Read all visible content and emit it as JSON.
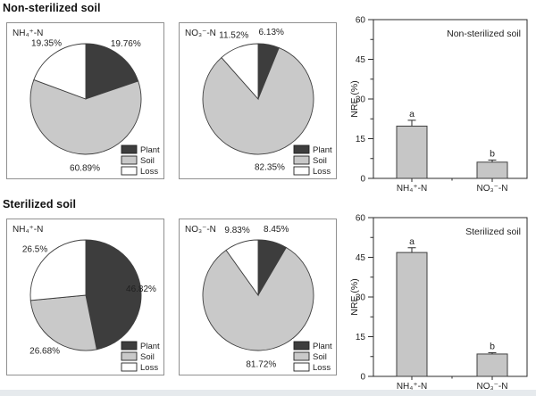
{
  "figure": {
    "section_headings": [
      "Non-sterilized soil",
      "Sterilized soil"
    ],
    "legend_labels": [
      "Plant",
      "Soil",
      "Loss"
    ],
    "colors": {
      "plant": "#3d3d3d",
      "soil": "#c9c9c9",
      "loss": "#ffffff",
      "outline": "#3f3f3f",
      "panel_border": "#909090",
      "axis": "#2b2b2b",
      "bar_fill": "#c6c6c6",
      "text": "#1f1f1f",
      "bottom_strip": "#e6eaed"
    }
  },
  "chart_data": [
    {
      "type": "pie",
      "section": "Non-sterilized soil",
      "panel_label": "NH₄⁺-N",
      "slices": [
        {
          "label": "Plant",
          "value": 19.76,
          "text": "19.76%"
        },
        {
          "label": "Soil",
          "value": 60.89,
          "text": "60.89%"
        },
        {
          "label": "Loss",
          "value": 19.35,
          "text": "19.35%"
        }
      ],
      "legend": [
        "Plant",
        "Soil",
        "Loss"
      ],
      "legend_position": "bottom-right",
      "start_angle_deg": 0,
      "direction": "clockwise"
    },
    {
      "type": "pie",
      "section": "Non-sterilized soil",
      "panel_label": "NO₃⁻-N",
      "slices": [
        {
          "label": "Plant",
          "value": 6.13,
          "text": "6.13%"
        },
        {
          "label": "Soil",
          "value": 82.35,
          "text": "82.35%"
        },
        {
          "label": "Loss",
          "value": 11.52,
          "text": "11.52%"
        }
      ],
      "legend": [
        "Plant",
        "Soil",
        "Loss"
      ],
      "legend_position": "bottom-right",
      "start_angle_deg": 0,
      "direction": "clockwise"
    },
    {
      "type": "bar",
      "title": "Non-sterilized soil",
      "ylabel": "NRE (%)",
      "ylim": [
        0,
        60
      ],
      "yticks": [
        0,
        15,
        30,
        45,
        60
      ],
      "minor_tick_step": 7.5,
      "categories": [
        "NH₄⁺-N",
        "NO₃⁻-N"
      ],
      "values": [
        19.76,
        6.13
      ],
      "errors": [
        2.2,
        0.8
      ],
      "sig_letters": [
        "a",
        "b"
      ],
      "grid": false
    },
    {
      "type": "pie",
      "section": "Sterilized soil",
      "panel_label": "NH₄⁺-N",
      "slices": [
        {
          "label": "Plant",
          "value": 46.82,
          "text": "46.82%"
        },
        {
          "label": "Soil",
          "value": 26.68,
          "text": "26.68%"
        },
        {
          "label": "Loss",
          "value": 26.5,
          "text": "26.5%"
        }
      ],
      "legend": [
        "Plant",
        "Soil",
        "Loss"
      ],
      "legend_position": "bottom-right",
      "start_angle_deg": 0,
      "direction": "clockwise"
    },
    {
      "type": "pie",
      "section": "Sterilized soil",
      "panel_label": "NO₃⁻-N",
      "slices": [
        {
          "label": "Plant",
          "value": 8.45,
          "text": "8.45%"
        },
        {
          "label": "Soil",
          "value": 81.72,
          "text": "81.72%"
        },
        {
          "label": "Loss",
          "value": 9.83,
          "text": "9.83%"
        }
      ],
      "legend": [
        "Plant",
        "Soil",
        "Loss"
      ],
      "legend_position": "bottom-right",
      "start_angle_deg": 0,
      "direction": "clockwise"
    },
    {
      "type": "bar",
      "title": "Sterilized soil",
      "ylabel": "NRE (%)",
      "ylim": [
        0,
        60
      ],
      "yticks": [
        0,
        15,
        30,
        45,
        60
      ],
      "minor_tick_step": 7.5,
      "categories": [
        "NH₄⁺-N",
        "NO₃⁻-N"
      ],
      "values": [
        46.82,
        8.45
      ],
      "errors": [
        1.8,
        0.5
      ],
      "sig_letters": [
        "a",
        "b"
      ],
      "grid": false
    }
  ]
}
